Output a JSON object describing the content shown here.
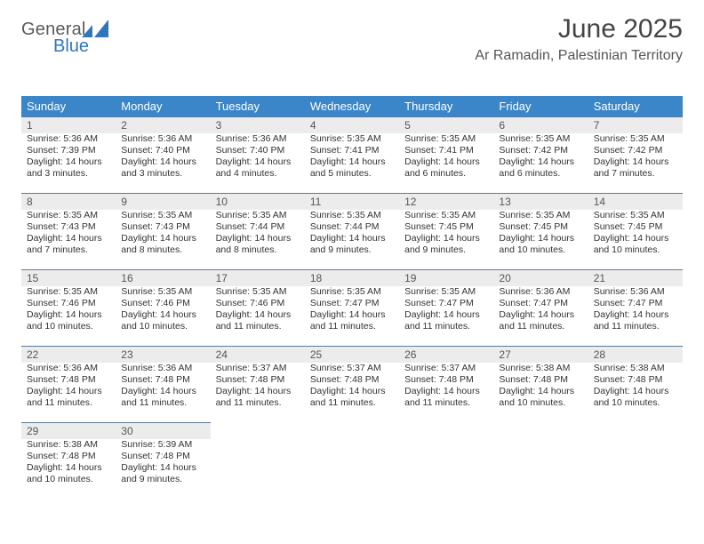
{
  "brand": {
    "general": "General",
    "blue": "Blue"
  },
  "title": "June 2025",
  "subtitle": "Ar Ramadin, Palestinian Territory",
  "weekdays": [
    "Sunday",
    "Monday",
    "Tuesday",
    "Wednesday",
    "Thursday",
    "Friday",
    "Saturday"
  ],
  "colors": {
    "header_bg": "#3a86c8",
    "header_text": "#ffffff",
    "daynum_bg": "#ececec",
    "daynum_border": "#5a7a9a",
    "text": "#333333",
    "brand_grey": "#5a5a5a",
    "brand_blue": "#2f77bd",
    "page_bg": "#ffffff"
  },
  "days": [
    {
      "n": "1",
      "sr": "Sunrise: 5:36 AM",
      "ss": "Sunset: 7:39 PM",
      "dl1": "Daylight: 14 hours",
      "dl2": "and 3 minutes."
    },
    {
      "n": "2",
      "sr": "Sunrise: 5:36 AM",
      "ss": "Sunset: 7:40 PM",
      "dl1": "Daylight: 14 hours",
      "dl2": "and 3 minutes."
    },
    {
      "n": "3",
      "sr": "Sunrise: 5:36 AM",
      "ss": "Sunset: 7:40 PM",
      "dl1": "Daylight: 14 hours",
      "dl2": "and 4 minutes."
    },
    {
      "n": "4",
      "sr": "Sunrise: 5:35 AM",
      "ss": "Sunset: 7:41 PM",
      "dl1": "Daylight: 14 hours",
      "dl2": "and 5 minutes."
    },
    {
      "n": "5",
      "sr": "Sunrise: 5:35 AM",
      "ss": "Sunset: 7:41 PM",
      "dl1": "Daylight: 14 hours",
      "dl2": "and 6 minutes."
    },
    {
      "n": "6",
      "sr": "Sunrise: 5:35 AM",
      "ss": "Sunset: 7:42 PM",
      "dl1": "Daylight: 14 hours",
      "dl2": "and 6 minutes."
    },
    {
      "n": "7",
      "sr": "Sunrise: 5:35 AM",
      "ss": "Sunset: 7:42 PM",
      "dl1": "Daylight: 14 hours",
      "dl2": "and 7 minutes."
    },
    {
      "n": "8",
      "sr": "Sunrise: 5:35 AM",
      "ss": "Sunset: 7:43 PM",
      "dl1": "Daylight: 14 hours",
      "dl2": "and 7 minutes."
    },
    {
      "n": "9",
      "sr": "Sunrise: 5:35 AM",
      "ss": "Sunset: 7:43 PM",
      "dl1": "Daylight: 14 hours",
      "dl2": "and 8 minutes."
    },
    {
      "n": "10",
      "sr": "Sunrise: 5:35 AM",
      "ss": "Sunset: 7:44 PM",
      "dl1": "Daylight: 14 hours",
      "dl2": "and 8 minutes."
    },
    {
      "n": "11",
      "sr": "Sunrise: 5:35 AM",
      "ss": "Sunset: 7:44 PM",
      "dl1": "Daylight: 14 hours",
      "dl2": "and 9 minutes."
    },
    {
      "n": "12",
      "sr": "Sunrise: 5:35 AM",
      "ss": "Sunset: 7:45 PM",
      "dl1": "Daylight: 14 hours",
      "dl2": "and 9 minutes."
    },
    {
      "n": "13",
      "sr": "Sunrise: 5:35 AM",
      "ss": "Sunset: 7:45 PM",
      "dl1": "Daylight: 14 hours",
      "dl2": "and 10 minutes."
    },
    {
      "n": "14",
      "sr": "Sunrise: 5:35 AM",
      "ss": "Sunset: 7:45 PM",
      "dl1": "Daylight: 14 hours",
      "dl2": "and 10 minutes."
    },
    {
      "n": "15",
      "sr": "Sunrise: 5:35 AM",
      "ss": "Sunset: 7:46 PM",
      "dl1": "Daylight: 14 hours",
      "dl2": "and 10 minutes."
    },
    {
      "n": "16",
      "sr": "Sunrise: 5:35 AM",
      "ss": "Sunset: 7:46 PM",
      "dl1": "Daylight: 14 hours",
      "dl2": "and 10 minutes."
    },
    {
      "n": "17",
      "sr": "Sunrise: 5:35 AM",
      "ss": "Sunset: 7:46 PM",
      "dl1": "Daylight: 14 hours",
      "dl2": "and 11 minutes."
    },
    {
      "n": "18",
      "sr": "Sunrise: 5:35 AM",
      "ss": "Sunset: 7:47 PM",
      "dl1": "Daylight: 14 hours",
      "dl2": "and 11 minutes."
    },
    {
      "n": "19",
      "sr": "Sunrise: 5:35 AM",
      "ss": "Sunset: 7:47 PM",
      "dl1": "Daylight: 14 hours",
      "dl2": "and 11 minutes."
    },
    {
      "n": "20",
      "sr": "Sunrise: 5:36 AM",
      "ss": "Sunset: 7:47 PM",
      "dl1": "Daylight: 14 hours",
      "dl2": "and 11 minutes."
    },
    {
      "n": "21",
      "sr": "Sunrise: 5:36 AM",
      "ss": "Sunset: 7:47 PM",
      "dl1": "Daylight: 14 hours",
      "dl2": "and 11 minutes."
    },
    {
      "n": "22",
      "sr": "Sunrise: 5:36 AM",
      "ss": "Sunset: 7:48 PM",
      "dl1": "Daylight: 14 hours",
      "dl2": "and 11 minutes."
    },
    {
      "n": "23",
      "sr": "Sunrise: 5:36 AM",
      "ss": "Sunset: 7:48 PM",
      "dl1": "Daylight: 14 hours",
      "dl2": "and 11 minutes."
    },
    {
      "n": "24",
      "sr": "Sunrise: 5:37 AM",
      "ss": "Sunset: 7:48 PM",
      "dl1": "Daylight: 14 hours",
      "dl2": "and 11 minutes."
    },
    {
      "n": "25",
      "sr": "Sunrise: 5:37 AM",
      "ss": "Sunset: 7:48 PM",
      "dl1": "Daylight: 14 hours",
      "dl2": "and 11 minutes."
    },
    {
      "n": "26",
      "sr": "Sunrise: 5:37 AM",
      "ss": "Sunset: 7:48 PM",
      "dl1": "Daylight: 14 hours",
      "dl2": "and 11 minutes."
    },
    {
      "n": "27",
      "sr": "Sunrise: 5:38 AM",
      "ss": "Sunset: 7:48 PM",
      "dl1": "Daylight: 14 hours",
      "dl2": "and 10 minutes."
    },
    {
      "n": "28",
      "sr": "Sunrise: 5:38 AM",
      "ss": "Sunset: 7:48 PM",
      "dl1": "Daylight: 14 hours",
      "dl2": "and 10 minutes."
    },
    {
      "n": "29",
      "sr": "Sunrise: 5:38 AM",
      "ss": "Sunset: 7:48 PM",
      "dl1": "Daylight: 14 hours",
      "dl2": "and 10 minutes."
    },
    {
      "n": "30",
      "sr": "Sunrise: 5:39 AM",
      "ss": "Sunset: 7:48 PM",
      "dl1": "Daylight: 14 hours",
      "dl2": "and 9 minutes."
    }
  ]
}
